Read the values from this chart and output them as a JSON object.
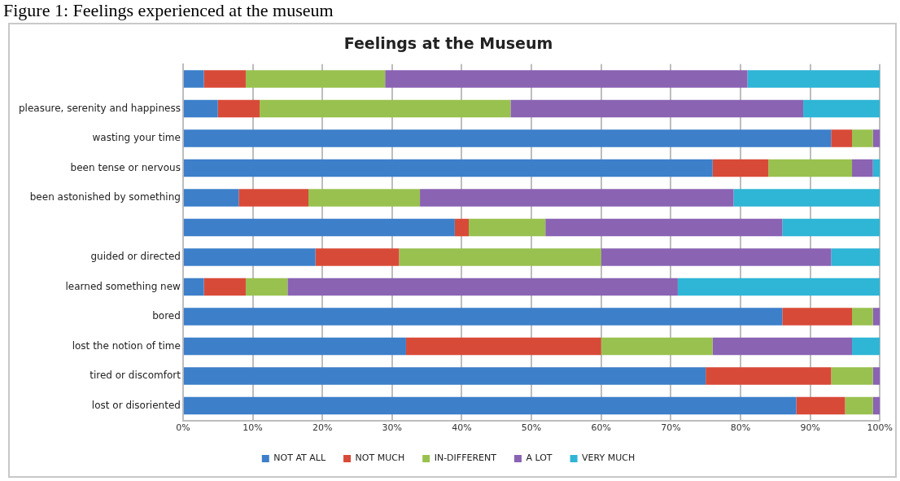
{
  "chart_data": {
    "type": "bar",
    "orientation": "horizontal",
    "stacked": true,
    "title": "Feelings at the Museum",
    "annotations": [
      "Figure 1: Feelings experienced at the museum"
    ],
    "categories": [
      null,
      "pleasure, serenity and happiness",
      "wasting your time",
      "been tense or nervous",
      "been astonished by something",
      null,
      "guided or directed",
      "learned something new",
      "bored",
      "lost the notion of time",
      "tired or discomfort",
      "lost or disoriented"
    ],
    "series": [
      {
        "name": "NOT AT ALL",
        "color": "#3d7fc9",
        "values": [
          3,
          5,
          93,
          76,
          8,
          39,
          19,
          3,
          86,
          32,
          75,
          88
        ]
      },
      {
        "name": "NOT MUCH",
        "color": "#d84a38",
        "values": [
          6,
          6,
          3,
          8,
          10,
          2,
          12,
          6,
          10,
          28,
          18,
          7
        ]
      },
      {
        "name": "IN-DIFFERENT",
        "color": "#99c14f",
        "values": [
          20,
          36,
          3,
          12,
          16,
          11,
          29,
          6,
          3,
          16,
          6,
          4
        ]
      },
      {
        "name": "A LOT",
        "color": "#8a63b3",
        "values": [
          52,
          42,
          1,
          3,
          45,
          34,
          33,
          56,
          1,
          20,
          1,
          1
        ]
      },
      {
        "name": "VERY MUCH",
        "color": "#2fb5d5",
        "values": [
          19,
          11,
          0,
          1,
          21,
          14,
          7,
          29,
          0,
          4,
          0,
          0
        ]
      }
    ],
    "xlim": [
      0,
      100
    ],
    "xticks": [
      {
        "value": 0,
        "label": "0%"
      },
      {
        "value": 10,
        "label": "10%"
      },
      {
        "value": 20,
        "label": "20%"
      },
      {
        "value": 30,
        "label": "30%"
      },
      {
        "value": 40,
        "label": "40%"
      },
      {
        "value": 50,
        "label": "50%"
      },
      {
        "value": 60,
        "label": "60%"
      },
      {
        "value": 70,
        "label": "70%"
      },
      {
        "value": 80,
        "label": "80%"
      },
      {
        "value": 90,
        "label": "90%"
      },
      {
        "value": 100,
        "label": "100%"
      }
    ],
    "grid": "x",
    "legend": "bottom"
  }
}
